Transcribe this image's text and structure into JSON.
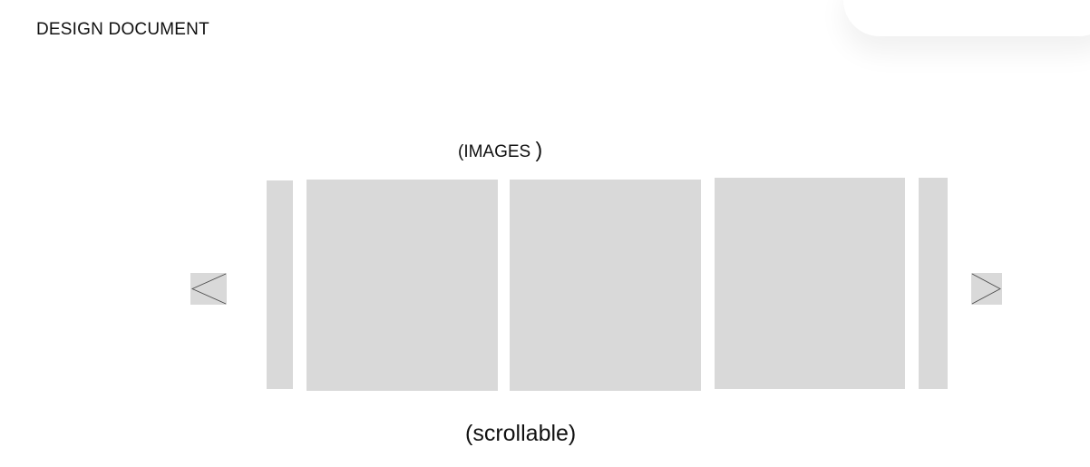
{
  "document": {
    "title": "DESIGN DOCUMENT"
  },
  "gallery": {
    "label_main": "(IMAGES ",
    "label_close": ")",
    "caption": "(scrollable)",
    "tile_color": "#d9d9d9",
    "tiles": [
      "partial-left",
      "full",
      "full",
      "full",
      "partial-right"
    ],
    "prev_icon": "chevron-left-icon",
    "next_icon": "chevron-right-icon"
  }
}
